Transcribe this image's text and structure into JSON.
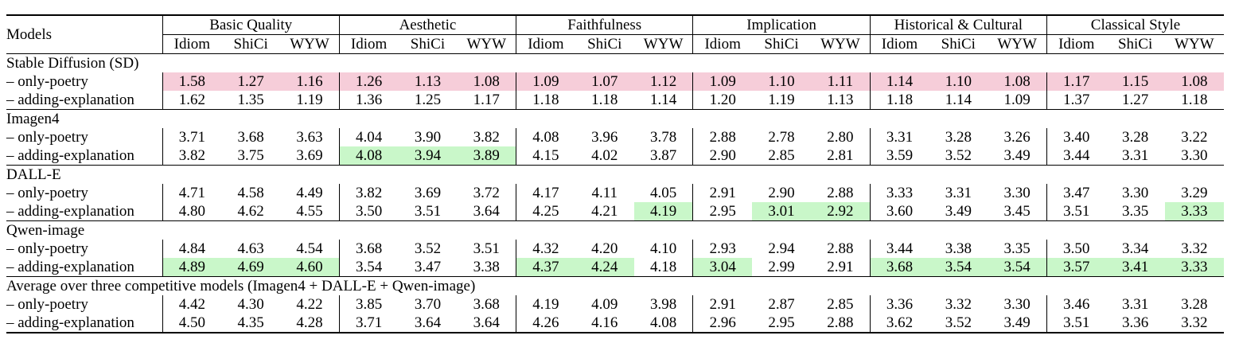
{
  "colors": {
    "worst_highlight": "#f6cdd9",
    "best_highlight": "#c9f7c9"
  },
  "header": {
    "models_label": "Models",
    "groups": [
      "Basic Quality",
      "Aesthetic",
      "Faithfulness",
      "Implication",
      "Historical & Cultural",
      "Classical Style"
    ],
    "subcolumns": [
      "Idiom",
      "ShiCi",
      "WYW"
    ]
  },
  "sections": [
    {
      "title": "Stable Diffusion (SD)",
      "rows": [
        {
          "label": "– only-poetry",
          "values": [
            "1.58",
            "1.27",
            "1.16",
            "1.26",
            "1.13",
            "1.08",
            "1.09",
            "1.07",
            "1.12",
            "1.09",
            "1.10",
            "1.11",
            "1.14",
            "1.10",
            "1.08",
            "1.17",
            "1.15",
            "1.08"
          ],
          "highlight": [
            "red",
            "red",
            "red",
            "red",
            "red",
            "red",
            "red",
            "red",
            "red",
            "red",
            "red",
            "red",
            "red",
            "red",
            "red",
            "red",
            "red",
            "red"
          ]
        },
        {
          "label": "– adding-explanation",
          "values": [
            "1.62",
            "1.35",
            "1.19",
            "1.36",
            "1.25",
            "1.17",
            "1.18",
            "1.18",
            "1.14",
            "1.20",
            "1.19",
            "1.13",
            "1.18",
            "1.14",
            "1.09",
            "1.37",
            "1.27",
            "1.18"
          ],
          "highlight": [
            "",
            "",
            "",
            "",
            "",
            "",
            "",
            "",
            "",
            "",
            "",
            "",
            "",
            "",
            "",
            "",
            "",
            ""
          ]
        }
      ]
    },
    {
      "title": "Imagen4",
      "rows": [
        {
          "label": "– only-poetry",
          "values": [
            "3.71",
            "3.68",
            "3.63",
            "4.04",
            "3.90",
            "3.82",
            "4.08",
            "3.96",
            "3.78",
            "2.88",
            "2.78",
            "2.80",
            "3.31",
            "3.28",
            "3.26",
            "3.40",
            "3.28",
            "3.22"
          ],
          "highlight": [
            "",
            "",
            "",
            "",
            "",
            "",
            "",
            "",
            "",
            "",
            "",
            "",
            "",
            "",
            "",
            "",
            "",
            ""
          ]
        },
        {
          "label": "– adding-explanation",
          "values": [
            "3.82",
            "3.75",
            "3.69",
            "4.08",
            "3.94",
            "3.89",
            "4.15",
            "4.02",
            "3.87",
            "2.90",
            "2.85",
            "2.81",
            "3.59",
            "3.52",
            "3.49",
            "3.44",
            "3.31",
            "3.30"
          ],
          "highlight": [
            "",
            "",
            "",
            "green",
            "green",
            "green",
            "",
            "",
            "",
            "",
            "",
            "",
            "",
            "",
            "",
            "",
            "",
            ""
          ]
        }
      ]
    },
    {
      "title": "DALL-E",
      "rows": [
        {
          "label": "– only-poetry",
          "values": [
            "4.71",
            "4.58",
            "4.49",
            "3.82",
            "3.69",
            "3.72",
            "4.17",
            "4.11",
            "4.05",
            "2.91",
            "2.90",
            "2.88",
            "3.33",
            "3.31",
            "3.30",
            "3.47",
            "3.30",
            "3.29"
          ],
          "highlight": [
            "",
            "",
            "",
            "",
            "",
            "",
            "",
            "",
            "",
            "",
            "",
            "",
            "",
            "",
            "",
            "",
            "",
            ""
          ]
        },
        {
          "label": "– adding-explanation",
          "values": [
            "4.80",
            "4.62",
            "4.55",
            "3.50",
            "3.51",
            "3.64",
            "4.25",
            "4.21",
            "4.19",
            "2.95",
            "3.01",
            "2.92",
            "3.60",
            "3.49",
            "3.45",
            "3.51",
            "3.35",
            "3.33"
          ],
          "highlight": [
            "",
            "",
            "",
            "",
            "",
            "",
            "",
            "",
            "green",
            "",
            "green",
            "green",
            "",
            "",
            "",
            "",
            "",
            "green"
          ]
        }
      ]
    },
    {
      "title": "Qwen-image",
      "rows": [
        {
          "label": "– only-poetry",
          "values": [
            "4.84",
            "4.63",
            "4.54",
            "3.68",
            "3.52",
            "3.51",
            "4.32",
            "4.20",
            "4.10",
            "2.93",
            "2.94",
            "2.88",
            "3.44",
            "3.38",
            "3.35",
            "3.50",
            "3.34",
            "3.32"
          ],
          "highlight": [
            "",
            "",
            "",
            "",
            "",
            "",
            "",
            "",
            "",
            "",
            "",
            "",
            "",
            "",
            "",
            "",
            "",
            ""
          ]
        },
        {
          "label": "– adding-explanation",
          "values": [
            "4.89",
            "4.69",
            "4.60",
            "3.54",
            "3.47",
            "3.38",
            "4.37",
            "4.24",
            "4.18",
            "3.04",
            "2.99",
            "2.91",
            "3.68",
            "3.54",
            "3.54",
            "3.57",
            "3.41",
            "3.33"
          ],
          "highlight": [
            "green",
            "green",
            "green",
            "",
            "",
            "",
            "green",
            "green",
            "",
            "green",
            "",
            "",
            "green",
            "green",
            "green",
            "green",
            "green",
            "green"
          ]
        }
      ]
    },
    {
      "title": "Average over three competitive models (Imagen4 + DALL-E + Qwen-image)",
      "rows": [
        {
          "label": "– only-poetry",
          "values": [
            "4.42",
            "4.30",
            "4.22",
            "3.85",
            "3.70",
            "3.68",
            "4.19",
            "4.09",
            "3.98",
            "2.91",
            "2.87",
            "2.85",
            "3.36",
            "3.32",
            "3.30",
            "3.46",
            "3.31",
            "3.28"
          ],
          "highlight": [
            "",
            "",
            "",
            "",
            "",
            "",
            "",
            "",
            "",
            "",
            "",
            "",
            "",
            "",
            "",
            "",
            "",
            ""
          ]
        },
        {
          "label": "– adding-explanation",
          "values": [
            "4.50",
            "4.35",
            "4.28",
            "3.71",
            "3.64",
            "3.64",
            "4.26",
            "4.16",
            "4.08",
            "2.96",
            "2.95",
            "2.88",
            "3.62",
            "3.52",
            "3.49",
            "3.51",
            "3.36",
            "3.32"
          ],
          "highlight": [
            "",
            "",
            "",
            "",
            "",
            "",
            "",
            "",
            "",
            "",
            "",
            "",
            "",
            "",
            "",
            "",
            "",
            ""
          ]
        }
      ]
    }
  ]
}
